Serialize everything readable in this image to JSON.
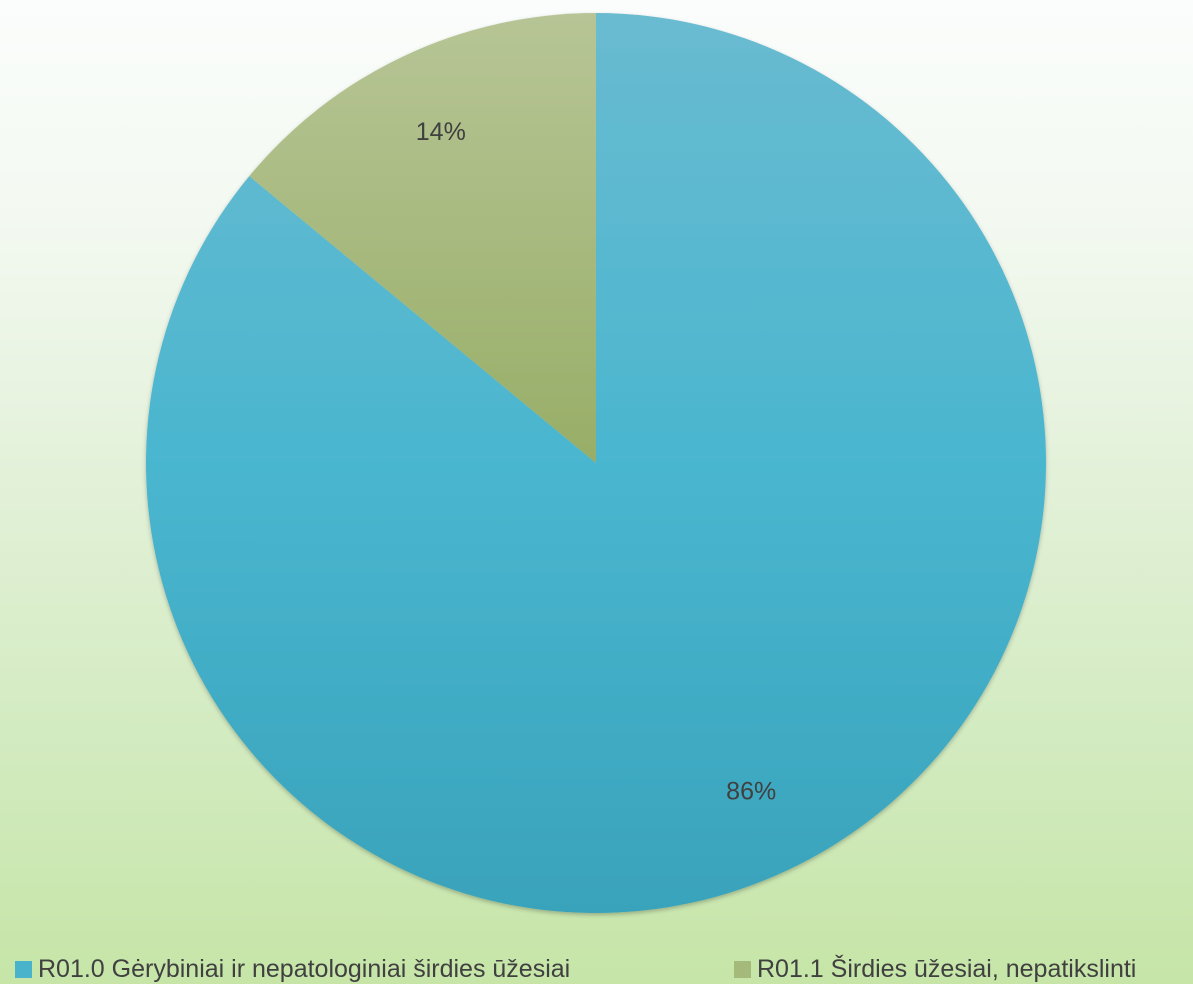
{
  "chart_data": {
    "type": "pie",
    "title": "",
    "slices": [
      {
        "label": "R01.0 Gėrybiniai ir nepatologiniai širdies ūžesiai",
        "value": 86,
        "value_label": "86%",
        "color": "#4ab3cc"
      },
      {
        "label": "R01.1 Širdies ūžesiai, nepatikslinti",
        "value": 14,
        "value_label": "14%",
        "color": "#a5b97b"
      }
    ],
    "start_angle": "12 o'clock",
    "direction": "clockwise",
    "legend_position": "bottom",
    "data_labels": "percent"
  }
}
